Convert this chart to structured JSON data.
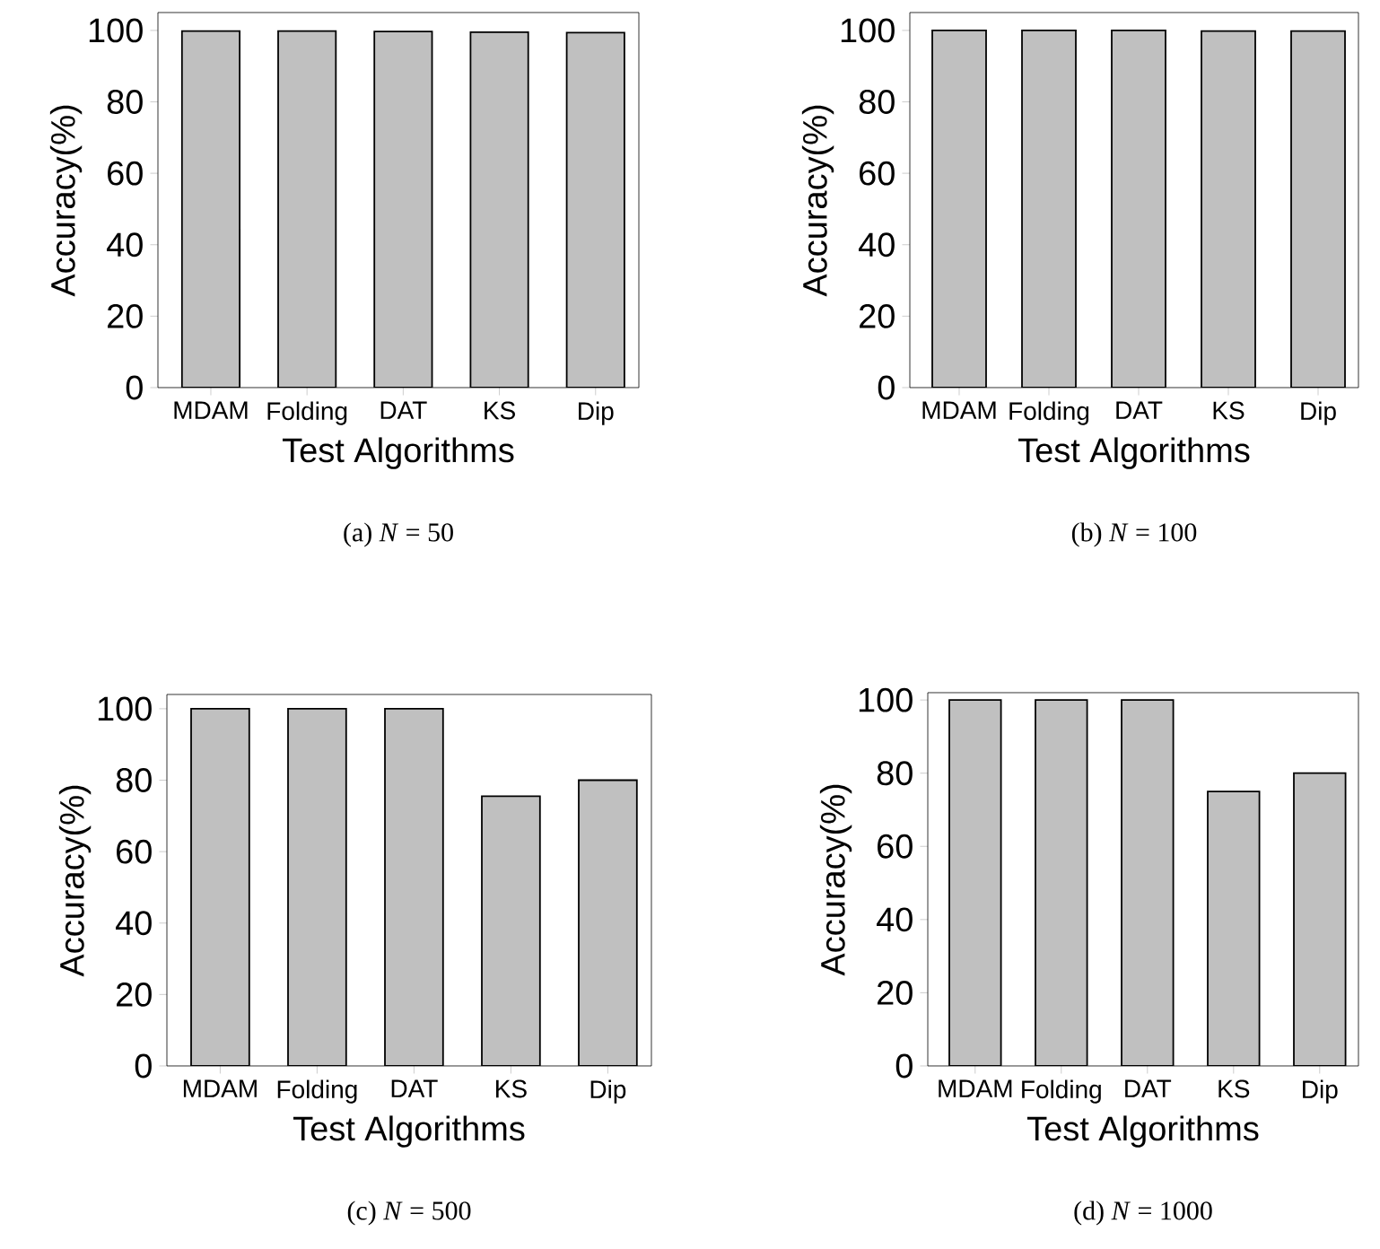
{
  "chart_data": [
    {
      "type": "bar",
      "categories": [
        "MDAM",
        "Folding",
        "DAT",
        "KS",
        "Dip"
      ],
      "values": [
        99.8,
        99.8,
        99.7,
        99.5,
        99.4
      ],
      "color": "#c0c0c0",
      "ylim": [
        0,
        105
      ],
      "yticks": [
        0,
        20,
        40,
        60,
        80,
        100
      ],
      "xlabel": "Test Algorithms",
      "ylabel": "Accuracy(%)",
      "annotations": [
        "(a) *N* = 50"
      ]
    },
    {
      "type": "bar",
      "categories": [
        "MDAM",
        "Folding",
        "DAT",
        "KS",
        "Dip"
      ],
      "values": [
        100,
        100,
        100,
        99.8,
        99.8
      ],
      "color": "#c0c0c0",
      "ylim": [
        0,
        105
      ],
      "yticks": [
        0,
        20,
        40,
        60,
        80,
        100
      ],
      "xlabel": "Test Algorithms",
      "ylabel": "Accuracy(%)",
      "annotations": [
        "(b) *N* = 100"
      ]
    },
    {
      "type": "bar",
      "categories": [
        "MDAM",
        "Folding",
        "DAT",
        "KS",
        "Dip"
      ],
      "values": [
        100,
        100,
        100,
        75.5,
        80
      ],
      "color": "#c0c0c0",
      "ylim": [
        0,
        104
      ],
      "yticks": [
        0,
        20,
        40,
        60,
        80,
        100
      ],
      "xlabel": "Test Algorithms",
      "ylabel": "Accuracy(%)",
      "annotations": [
        "(c) *N* = 500"
      ]
    },
    {
      "type": "bar",
      "categories": [
        "MDAM",
        "Folding",
        "DAT",
        "KS",
        "Dip"
      ],
      "values": [
        100,
        100,
        100,
        75,
        80
      ],
      "color": "#c0c0c0",
      "ylim": [
        0,
        102
      ],
      "yticks": [
        0,
        20,
        40,
        60,
        80,
        100
      ],
      "xlabel": "Test Algorithms",
      "ylabel": "Accuracy(%)",
      "annotations": [
        "(d) *N* = 1000"
      ]
    }
  ]
}
